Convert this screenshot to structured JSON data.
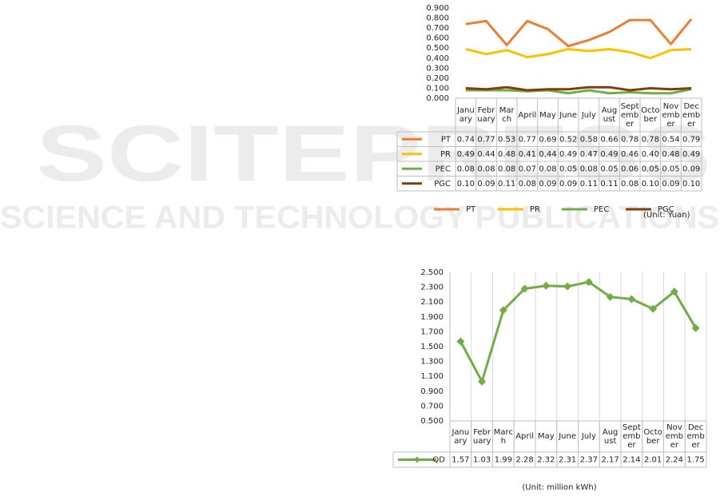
{
  "watermark": {
    "logo": "SCITEPRESS",
    "tagline": "SCIENCE AND TECHNOLOGY PUBLICATIONS"
  },
  "chart_data": [
    {
      "type": "line",
      "categories": [
        "January",
        "February",
        "March",
        "April",
        "May",
        "June",
        "July",
        "August",
        "September",
        "October",
        "November",
        "December"
      ],
      "series": [
        {
          "name": "PT",
          "color": "#ed7d31",
          "values": [
            0.74,
            0.77,
            0.53,
            0.77,
            0.69,
            0.52,
            0.58,
            0.66,
            0.78,
            0.78,
            0.54,
            0.79
          ],
          "value_labels": [
            "0.74",
            "0.77",
            "0.53",
            "0.77",
            "0.69",
            "0.52",
            "0.58",
            "0.66",
            "0.78",
            "0.78",
            "0.54",
            "0.79"
          ]
        },
        {
          "name": "PR",
          "color": "#ffc000",
          "values": [
            0.49,
            0.44,
            0.48,
            0.41,
            0.44,
            0.49,
            0.47,
            0.49,
            0.46,
            0.4,
            0.48,
            0.49
          ],
          "value_labels": [
            "0.49",
            "0.44",
            "0.48",
            "0.41",
            "0.44",
            "0.49",
            "0.47",
            "0.49",
            "0.46",
            "0.40",
            "0.48",
            "0.49"
          ]
        },
        {
          "name": "PEC",
          "color": "#70ad47",
          "values": [
            0.08,
            0.08,
            0.08,
            0.07,
            0.08,
            0.05,
            0.08,
            0.05,
            0.06,
            0.05,
            0.05,
            0.09
          ],
          "value_labels": [
            "0.08",
            "0.08",
            "0.08",
            "0.07",
            "0.08",
            "0.05",
            "0.08",
            "0.05",
            "0.06",
            "0.05",
            "0.05",
            "0.09"
          ]
        },
        {
          "name": "PGC",
          "color": "#843c0c",
          "values": [
            0.1,
            0.09,
            0.11,
            0.08,
            0.09,
            0.09,
            0.11,
            0.11,
            0.08,
            0.1,
            0.09,
            0.1
          ],
          "value_labels": [
            "0.10",
            "0.09",
            "0.11",
            "0.08",
            "0.09",
            "0.09",
            "0.11",
            "0.11",
            "0.08",
            "0.10",
            "0.09",
            "0.10"
          ]
        }
      ],
      "ylim": [
        0,
        0.9
      ],
      "yticks": [
        {
          "value": 0,
          "label": "0.000"
        },
        {
          "value": 0.1,
          "label": "0.100"
        },
        {
          "value": 0.2,
          "label": "0.200"
        },
        {
          "value": 0.3,
          "label": "0.300"
        },
        {
          "value": 0.4,
          "label": "0.400"
        },
        {
          "value": 0.5,
          "label": "0.500"
        },
        {
          "value": 0.6,
          "label": "0.600"
        },
        {
          "value": 0.7,
          "label": "0.700"
        },
        {
          "value": 0.8,
          "label": "0.800"
        },
        {
          "value": 0.9,
          "label": "0.900"
        }
      ],
      "legend": "bottom",
      "grid": false,
      "note": "(Unit: Yuan)"
    },
    {
      "type": "line",
      "categories": [
        "January",
        "February",
        "March",
        "April",
        "May",
        "June",
        "July",
        "August",
        "September",
        "October",
        "November",
        "December"
      ],
      "series": [
        {
          "name": "QD",
          "color": "#70ad47",
          "marker": "diamond",
          "values": [
            1.57,
            1.03,
            1.99,
            2.28,
            2.32,
            2.31,
            2.37,
            2.17,
            2.14,
            2.01,
            2.24,
            1.75
          ]
        }
      ],
      "ylim": [
        0.5,
        2.5
      ],
      "yticks": [
        {
          "value": 0.5,
          "label": "0.500"
        },
        {
          "value": 0.7,
          "label": "0.700"
        },
        {
          "value": 0.9,
          "label": "0.900"
        },
        {
          "value": 1.1,
          "label": "1.100"
        },
        {
          "value": 1.3,
          "label": "1.300"
        },
        {
          "value": 1.5,
          "label": "1.500"
        },
        {
          "value": 1.7,
          "label": "1.700"
        },
        {
          "value": 1.9,
          "label": "1.900"
        },
        {
          "value": 2.1,
          "label": "2.100"
        },
        {
          "value": 2.3,
          "label": "2.300"
        },
        {
          "value": 2.5,
          "label": "2.500"
        }
      ],
      "legend": "table",
      "grid": true,
      "note": "(Unit: million kWh)"
    }
  ]
}
